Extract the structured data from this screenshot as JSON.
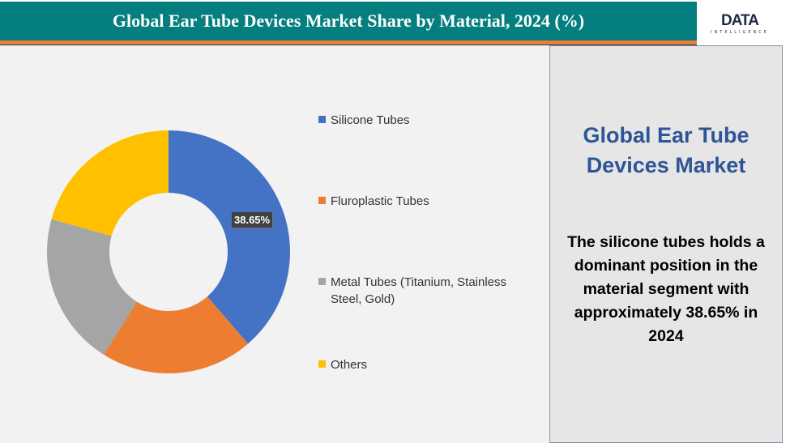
{
  "header": {
    "title": "Global Ear Tube Devices Market Share by Material, 2024 (%)",
    "logo_text": "DATA",
    "logo_subtext": "INTELLIGENCE"
  },
  "chart_data": {
    "type": "pie",
    "subtype": "donut",
    "title": "Global Ear Tube Devices Market Share by Material, 2024 (%)",
    "categories": [
      "Silicone Tubes",
      "Fluroplastic Tubes",
      "Metal Tubes (Titanium, Stainless Steel, Gold)",
      "Others"
    ],
    "values": [
      38.65,
      20.3,
      20.4,
      20.65
    ],
    "colors": [
      "#4472c4",
      "#ed7d31",
      "#a5a5a5",
      "#ffc000"
    ],
    "data_labels": [
      "38.65%"
    ],
    "legend_position": "right"
  },
  "side_panel": {
    "title": "Global Ear Tube Devices Market",
    "body": "The silicone tubes holds a dominant position in the material segment with approximately 38.65% in 2024"
  }
}
